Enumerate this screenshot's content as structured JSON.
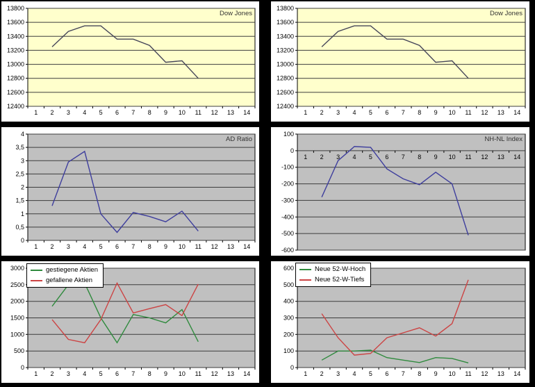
{
  "window": {
    "background": "#000000",
    "panel_background": "#ffffff",
    "gridline_color": "#3c3c3c",
    "plot_border_color": "#000000"
  },
  "chart_data": [
    {
      "id": "dow-jones-left",
      "type": "line",
      "title": "Dow Jones",
      "plot_bg": "#ffffcc",
      "grid": true,
      "legend_position": "none",
      "x_categories": [
        "1",
        "2",
        "3",
        "4",
        "5",
        "6",
        "7",
        "8",
        "9",
        "10",
        "11",
        "12",
        "13",
        "14"
      ],
      "xlim": [
        0.5,
        14.5
      ],
      "ylim": [
        12400,
        13800
      ],
      "y_tick_values": [
        13800,
        13600,
        13400,
        13200,
        13000,
        12800,
        12600,
        12400
      ],
      "y_tick_labels": [
        "13800",
        "13600",
        "13400",
        "13200",
        "13000",
        "12800",
        "12600",
        "12400"
      ],
      "x_labels_at_zero": false,
      "series": [
        {
          "name": "Dow Jones",
          "color": "#46465a",
          "x": [
            2,
            3,
            4,
            5,
            6,
            7,
            8,
            9,
            10,
            11
          ],
          "values": [
            13250,
            13470,
            13550,
            13550,
            13360,
            13360,
            13270,
            13030,
            13050,
            12800
          ]
        }
      ]
    },
    {
      "id": "dow-jones-right",
      "type": "line",
      "title": "Dow Jones",
      "plot_bg": "#ffffcc",
      "grid": true,
      "legend_position": "none",
      "x_categories": [
        "1",
        "2",
        "3",
        "4",
        "5",
        "6",
        "7",
        "8",
        "9",
        "10",
        "11",
        "12",
        "13",
        "14"
      ],
      "xlim": [
        0.5,
        14.5
      ],
      "ylim": [
        12400,
        13800
      ],
      "y_tick_values": [
        13800,
        13600,
        13400,
        13200,
        13000,
        12800,
        12600,
        12400
      ],
      "y_tick_labels": [
        "13800",
        "13600",
        "13400",
        "13200",
        "13000",
        "12800",
        "12600",
        "12400"
      ],
      "x_labels_at_zero": false,
      "series": [
        {
          "name": "Dow Jones",
          "color": "#46465a",
          "x": [
            2,
            3,
            4,
            5,
            6,
            7,
            8,
            9,
            10,
            11
          ],
          "values": [
            13250,
            13470,
            13550,
            13550,
            13360,
            13360,
            13270,
            13030,
            13050,
            12800
          ]
        }
      ]
    },
    {
      "id": "ad-ratio",
      "type": "line",
      "title": "AD Ratio",
      "plot_bg": "#c0c0c0",
      "grid": true,
      "legend_position": "none",
      "x_categories": [
        "1",
        "2",
        "3",
        "4",
        "5",
        "6",
        "7",
        "8",
        "9",
        "10",
        "11",
        "12",
        "13",
        "14"
      ],
      "xlim": [
        0.5,
        14.5
      ],
      "ylim": [
        0,
        4
      ],
      "y_tick_values": [
        4,
        3.5,
        3,
        2.5,
        2,
        1.5,
        1,
        0.5,
        0
      ],
      "y_tick_labels": [
        "4",
        "3,5",
        "3",
        "2,5",
        "2",
        "1,5",
        "1",
        "0,5",
        "0"
      ],
      "x_labels_at_zero": false,
      "series": [
        {
          "name": "AD Ratio",
          "color": "#3e3e9d",
          "x": [
            2,
            3,
            4,
            5,
            6,
            7,
            8,
            9,
            10,
            11
          ],
          "values": [
            1.3,
            2.95,
            3.35,
            1.0,
            0.3,
            1.05,
            0.9,
            0.7,
            1.1,
            0.35
          ]
        }
      ]
    },
    {
      "id": "nh-nl-index",
      "type": "line",
      "title": "NH-NL Index",
      "plot_bg": "#c0c0c0",
      "grid": true,
      "legend_position": "none",
      "x_categories": [
        "1",
        "2",
        "3",
        "4",
        "5",
        "6",
        "7",
        "8",
        "9",
        "10",
        "11",
        "12",
        "13",
        "14"
      ],
      "xlim": [
        0.5,
        14.5
      ],
      "ylim": [
        -600,
        100
      ],
      "y_tick_values": [
        100,
        0,
        -100,
        -200,
        -300,
        -400,
        -500,
        -600
      ],
      "y_tick_labels": [
        "100",
        "0",
        "-100",
        "-200",
        "-300",
        "-400",
        "-500",
        "-600"
      ],
      "x_labels_at_zero": true,
      "series": [
        {
          "name": "NH-NL Index",
          "color": "#3e3e9d",
          "x": [
            2,
            3,
            4,
            5,
            6,
            7,
            8,
            9,
            10,
            11
          ],
          "values": [
            -280,
            -60,
            25,
            20,
            -110,
            -170,
            -205,
            -130,
            -200,
            -510
          ]
        }
      ]
    },
    {
      "id": "aktien",
      "type": "line",
      "title": "",
      "plot_bg": "#c0c0c0",
      "grid": true,
      "legend_position": "top-left",
      "x_categories": [
        "1",
        "2",
        "3",
        "4",
        "5",
        "6",
        "7",
        "8",
        "9",
        "10",
        "11",
        "12",
        "13",
        "14"
      ],
      "xlim": [
        0.5,
        14.5
      ],
      "ylim": [
        0,
        3000
      ],
      "y_tick_values": [
        3000,
        2500,
        2000,
        1500,
        1000,
        500,
        0
      ],
      "y_tick_labels": [
        "3000",
        "2500",
        "2000",
        "1500",
        "1000",
        "500",
        "0"
      ],
      "x_labels_at_zero": false,
      "series": [
        {
          "name": "gestiegene Aktien",
          "color": "#2f8a3d",
          "x": [
            2,
            3,
            4,
            5,
            6,
            7,
            8,
            9,
            10,
            11
          ],
          "values": [
            1850,
            2500,
            2550,
            1500,
            750,
            1600,
            1500,
            1350,
            1750,
            780
          ]
        },
        {
          "name": "gefallene Aktien",
          "color": "#cc4343",
          "x": [
            2,
            3,
            4,
            5,
            6,
            7,
            8,
            9,
            10,
            11
          ],
          "values": [
            1450,
            850,
            750,
            1450,
            2550,
            1650,
            1780,
            1900,
            1570,
            2520
          ]
        }
      ]
    },
    {
      "id": "52w-hoch-tiefs",
      "type": "line",
      "title": "",
      "plot_bg": "#c0c0c0",
      "grid": true,
      "legend_position": "top-left",
      "x_categories": [
        "1",
        "2",
        "3",
        "4",
        "5",
        "6",
        "7",
        "8",
        "9",
        "10",
        "11",
        "12",
        "13",
        "14"
      ],
      "xlim": [
        0.5,
        14.5
      ],
      "ylim": [
        0,
        600
      ],
      "y_tick_values": [
        600,
        500,
        400,
        300,
        200,
        100,
        0
      ],
      "y_tick_labels": [
        "600",
        "500",
        "400",
        "300",
        "200",
        "100",
        "0"
      ],
      "x_labels_at_zero": false,
      "series": [
        {
          "name": "Neue 52-W-Hoch",
          "color": "#2f8a3d",
          "x": [
            2,
            3,
            4,
            5,
            6,
            7,
            8,
            9,
            10,
            11
          ],
          "values": [
            45,
            100,
            100,
            105,
            60,
            45,
            30,
            60,
            55,
            28
          ]
        },
        {
          "name": "Neue 52-W-Tiefs",
          "color": "#cc4343",
          "x": [
            2,
            3,
            4,
            5,
            6,
            7,
            8,
            9,
            10,
            11
          ],
          "values": [
            325,
            180,
            75,
            85,
            180,
            210,
            240,
            190,
            265,
            530
          ]
        }
      ]
    }
  ]
}
